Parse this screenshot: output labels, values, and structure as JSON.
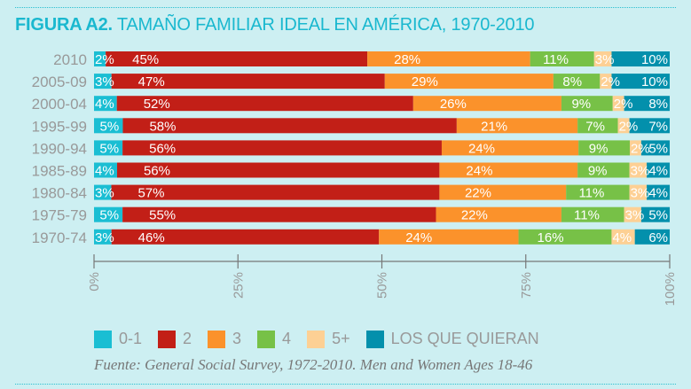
{
  "title": {
    "prefix": "FIGURA A2.",
    "text": "TAMAÑO FAMILIAR IDEAL EN AMÉRICA, 1970-2010"
  },
  "source": "Fuente: General Social Survey, 1972-2010. Men and Women Ages 18-46",
  "chart_data": {
    "type": "bar",
    "orientation": "horizontal",
    "stacked": true,
    "title": "FIGURA A2. TAMAÑO FAMILIAR IDEAL EN AMÉRICA, 1970-2010",
    "xlabel": "",
    "ylabel": "",
    "xlim": [
      0,
      100
    ],
    "x_ticks": [
      "0%",
      "25%",
      "50%",
      "75%",
      "100%"
    ],
    "legend_position": "bottom",
    "categories": [
      "2010",
      "2005-09",
      "2000-04",
      "1995-99",
      "1990-94",
      "1985-89",
      "1980-84",
      "1975-79",
      "1970-74"
    ],
    "series": [
      {
        "name": "0-1",
        "color": "#1abed3",
        "values": [
          2,
          3,
          4,
          5,
          5,
          4,
          3,
          5,
          3
        ]
      },
      {
        "name": "2",
        "color": "#c21f17",
        "values": [
          45,
          47,
          52,
          58,
          56,
          56,
          57,
          55,
          46
        ]
      },
      {
        "name": "3",
        "color": "#fb922b",
        "values": [
          28,
          29,
          26,
          21,
          24,
          24,
          22,
          22,
          24
        ]
      },
      {
        "name": "4",
        "color": "#77c147",
        "values": [
          11,
          8,
          9,
          7,
          9,
          9,
          11,
          11,
          16
        ]
      },
      {
        "name": "5+",
        "color": "#fdd094",
        "values": [
          3,
          2,
          2,
          2,
          2,
          3,
          3,
          3,
          4
        ]
      },
      {
        "name": "LOS QUE QUIERAN",
        "color": "#0390ac",
        "values": [
          10,
          10,
          8,
          7,
          5,
          4,
          4,
          5,
          6
        ]
      }
    ]
  }
}
